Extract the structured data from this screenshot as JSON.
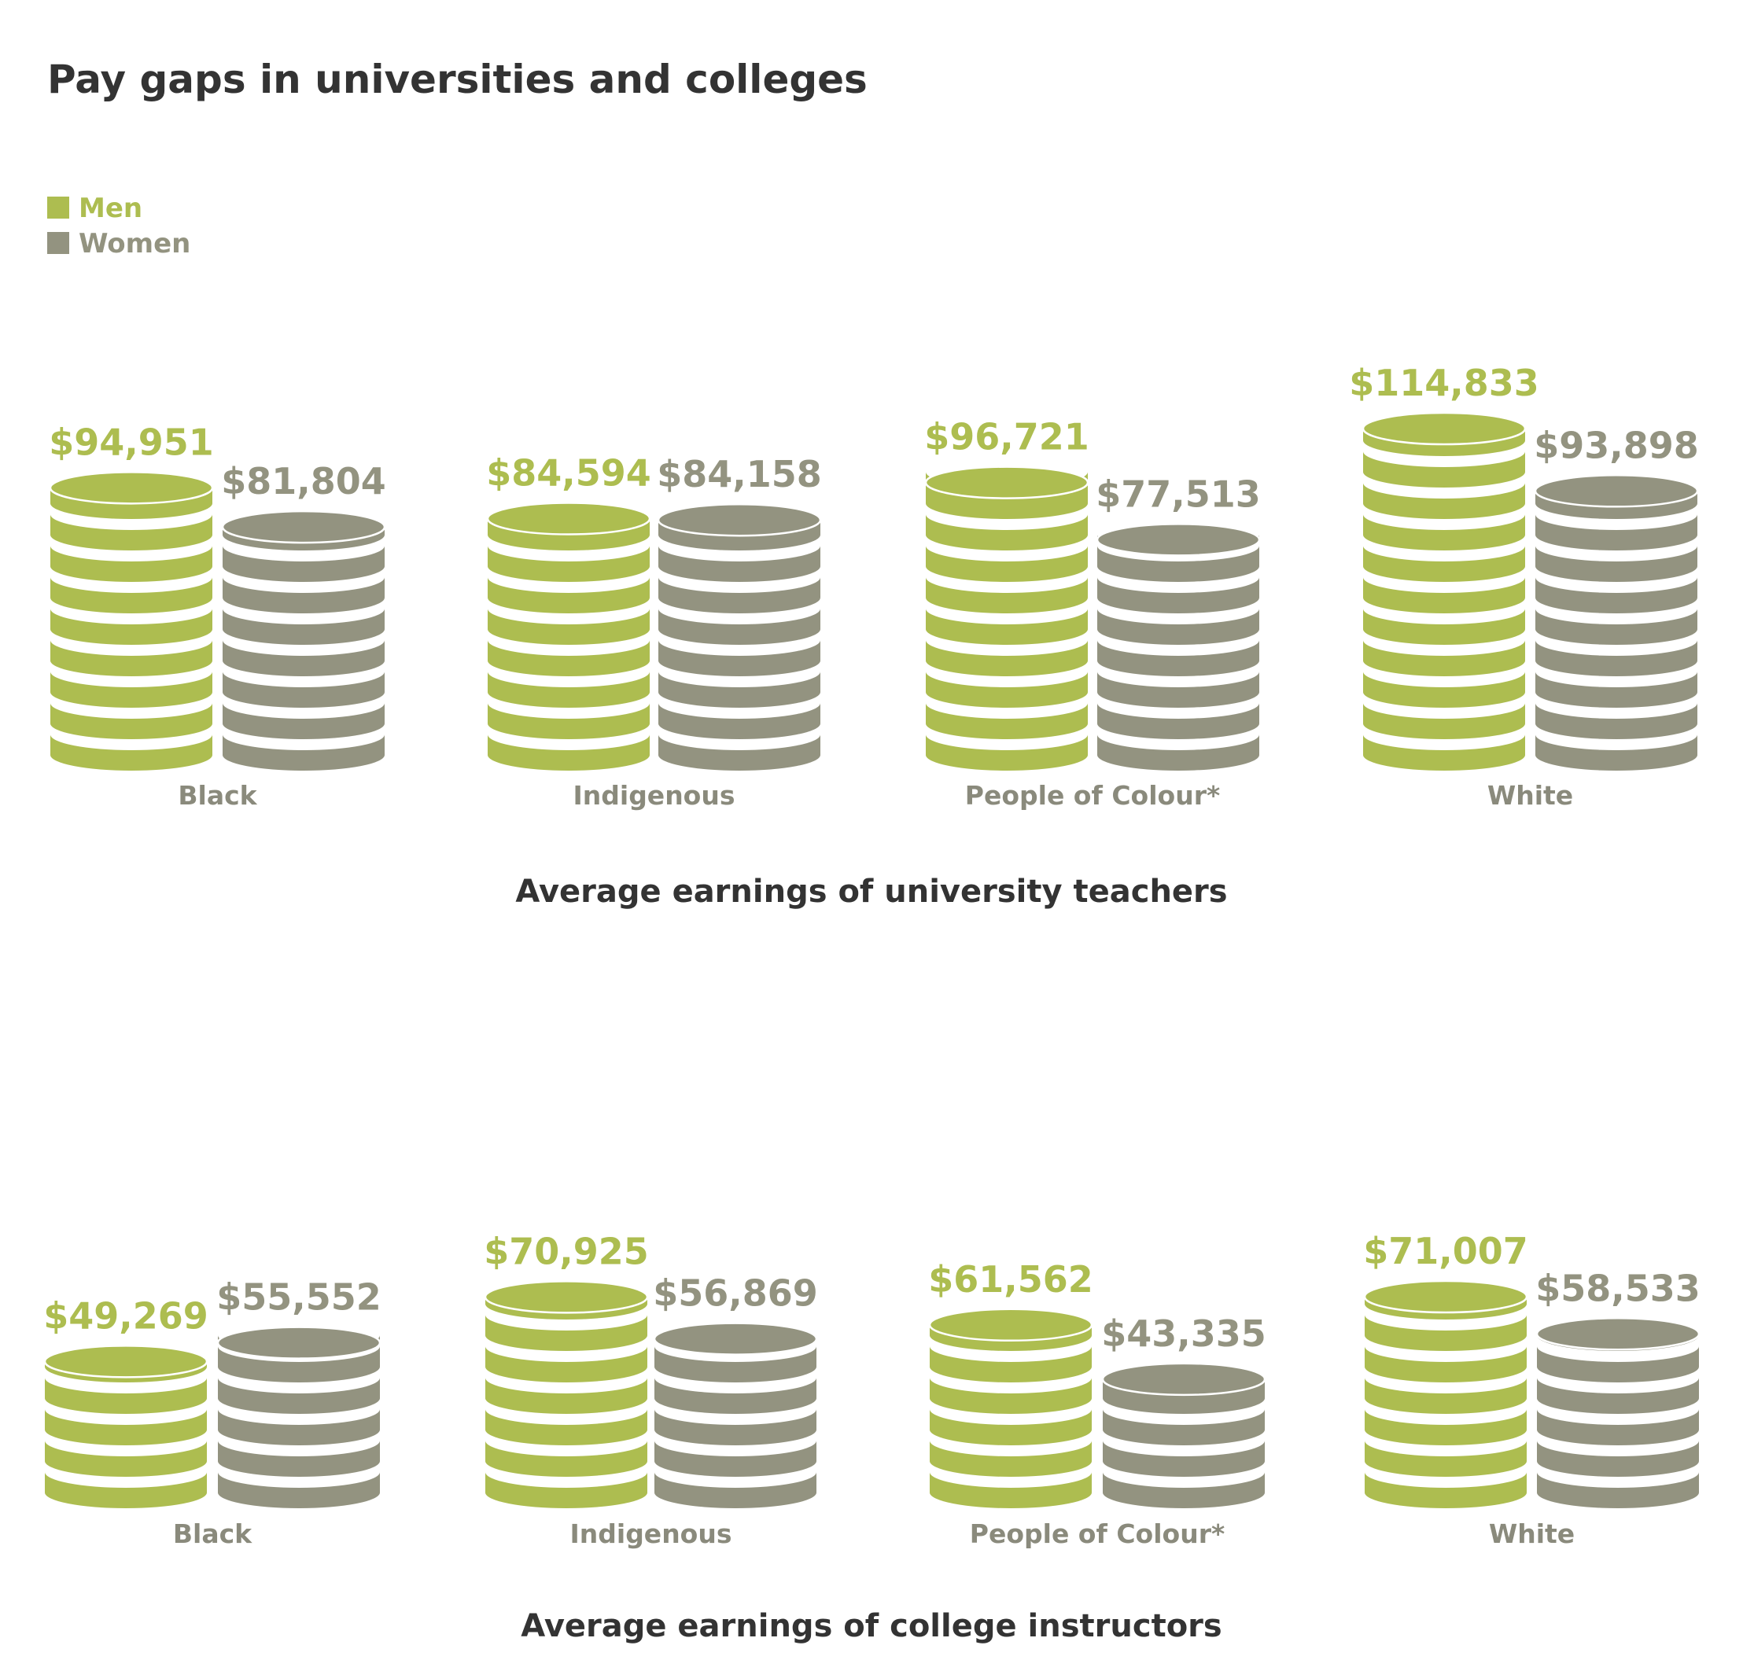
{
  "title": "Pay gaps in universities and colleges",
  "legend": [
    {
      "label": "Men",
      "color": "#adbd50"
    },
    {
      "label": "Women",
      "color": "#939380"
    }
  ],
  "chart_data": [
    {
      "type": "bar",
      "title": "Average earnings of university teachers",
      "categories": [
        "Black",
        "Indigenous",
        "People of Colour*",
        "White"
      ],
      "series": [
        {
          "name": "Men",
          "values": [
            94951,
            84594,
            96721,
            114833
          ],
          "labels": [
            "$94,951",
            "$84,594",
            "$96,721",
            "$114,833"
          ]
        },
        {
          "name": "Women",
          "values": [
            81804,
            84158,
            77513,
            93898
          ],
          "labels": [
            "$81,804",
            "$84,158",
            "$77,513",
            "$93,898"
          ]
        }
      ]
    },
    {
      "type": "bar",
      "title": "Average earnings of college instructors",
      "categories": [
        "Black",
        "Indigenous",
        "People of Colour*",
        "White"
      ],
      "series": [
        {
          "name": "Men",
          "values": [
            49269,
            70925,
            61562,
            71007
          ],
          "labels": [
            "$49,269",
            "$70,925",
            "$61,562",
            "$71,007"
          ]
        },
        {
          "name": "Women",
          "values": [
            55552,
            56869,
            43335,
            58533
          ],
          "labels": [
            "$55,552",
            "$56,869",
            "$43,335",
            "$58,533"
          ]
        }
      ]
    }
  ]
}
